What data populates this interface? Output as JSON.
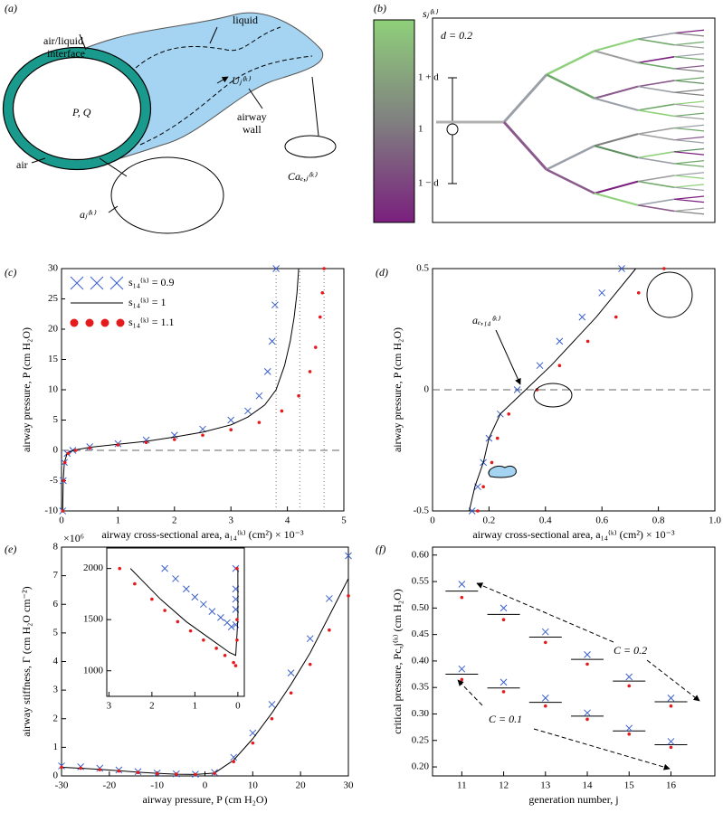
{
  "panel_a": {
    "panel_label": "(a)",
    "interface": [
      "air/liquid",
      "interface"
    ],
    "liquid": "liquid",
    "pressure_flow": "P, Q",
    "velocity": "Uⱼ⁽ᵏ⁾",
    "air": "air",
    "wall": [
      "airway",
      "wall"
    ],
    "capillary": "Caₑ,ⱼ⁽ᵏ⁾",
    "area": "aⱼ⁽ᵏ⁾"
  },
  "panel_b": {
    "panel_label": "(b)",
    "colorbar_label": "sⱼ⁽ᵏ⁾",
    "colorbar_ticks": [
      "1 + d",
      "1",
      "1 − d"
    ],
    "annotation": "d = 0.2"
  },
  "chart_data": [
    {
      "type": "line",
      "panel_label": "(c)",
      "xlabel": "airway cross-sectional area, a₁₄⁽ᵏ⁾ (cm²) × 10⁻³",
      "ylabel": "airway pressure, P (cm H₂O)",
      "xlim": [
        0,
        5
      ],
      "ylim": [
        -10,
        30
      ],
      "xticks": [
        0,
        1,
        2,
        3,
        4,
        5
      ],
      "yticks": [
        -10,
        -5,
        0,
        5,
        10,
        15,
        20,
        25,
        30
      ],
      "hline": 0,
      "vlines": [
        3.8,
        4.22,
        4.65
      ],
      "legend": "upper left",
      "series": [
        {
          "name": "s₁₄⁽ᵏ⁾ = 0.9",
          "color": "#3a5fcd",
          "marker": "x",
          "x": [
            0.02,
            0.03,
            0.05,
            0.1,
            0.2,
            0.5,
            1,
            1.5,
            2,
            2.5,
            3,
            3.3,
            3.5,
            3.65,
            3.73,
            3.78,
            3.8
          ],
          "values": [
            -10,
            -5,
            -2,
            -0.5,
            0,
            0.6,
            1.1,
            1.7,
            2.5,
            3.5,
            5,
            6.5,
            9,
            13,
            18,
            24,
            30
          ]
        },
        {
          "name": "s₁₄⁽ᵏ⁾ = 1",
          "color": "#000000",
          "marker": "line",
          "x": [
            0.02,
            0.03,
            0.05,
            0.1,
            0.2,
            0.5,
            1,
            1.5,
            2,
            2.5,
            3,
            3.3,
            3.6,
            3.8,
            3.95,
            4.05,
            4.12,
            4.17,
            4.2
          ],
          "values": [
            -10,
            -5,
            -2,
            -0.5,
            0,
            0.5,
            1,
            1.5,
            2.2,
            3,
            4.2,
            5.5,
            7.5,
            10,
            14,
            18,
            22,
            26,
            30
          ]
        },
        {
          "name": "s₁₄⁽ᵏ⁾ = 1.1",
          "color": "#e41a1c",
          "marker": "dot",
          "x": [
            0.02,
            0.04,
            0.06,
            0.12,
            0.25,
            0.5,
            1,
            1.5,
            2,
            2.5,
            3,
            3.5,
            3.9,
            4.2,
            4.4,
            4.5,
            4.58,
            4.62,
            4.65
          ],
          "values": [
            -10,
            -5,
            -2,
            -0.5,
            0,
            0.4,
            0.9,
            1.3,
            1.8,
            2.5,
            3.4,
            4.6,
            6.5,
            9,
            13,
            17,
            22,
            26,
            30
          ]
        }
      ]
    },
    {
      "type": "line",
      "panel_label": "(d)",
      "xlabel": "airway cross-sectional area, a₁₄⁽ᵏ⁾ (cm²) × 10⁻³",
      "ylabel": "airway pressure, P (cm H₂O)",
      "xlim": [
        0,
        1
      ],
      "ylim": [
        -0.5,
        0.5
      ],
      "xticks": [
        0,
        0.2,
        0.4,
        0.6,
        0.8,
        {
          "value": 1,
          "label": "1.0"
        }
      ],
      "yticks": [
        -0.5,
        0,
        0.5
      ],
      "hline": 0,
      "annotation": "aₑ,₁₄⁽ᵏ⁾",
      "series": [
        {
          "color": "#3a5fcd",
          "marker": "x",
          "x": [
            0.14,
            0.16,
            0.18,
            0.2,
            0.24,
            0.3,
            0.38,
            0.45,
            0.53,
            0.6,
            0.67
          ],
          "values": [
            -0.5,
            -0.4,
            -0.3,
            -0.2,
            -0.1,
            0,
            0.1,
            0.2,
            0.3,
            0.4,
            0.5
          ]
        },
        {
          "color": "#000000",
          "marker": "line",
          "x": [
            0.13,
            0.15,
            0.18,
            0.2,
            0.24,
            0.33,
            0.42,
            0.5,
            0.58,
            0.65,
            0.72
          ],
          "values": [
            -0.5,
            -0.4,
            -0.3,
            -0.2,
            -0.1,
            0,
            0.1,
            0.2,
            0.3,
            0.4,
            0.5
          ]
        },
        {
          "color": "#e41a1c",
          "marker": "dot",
          "x": [
            0.16,
            0.18,
            0.21,
            0.23,
            0.27,
            0.37,
            0.45,
            0.55,
            0.65,
            0.73,
            0.82
          ],
          "values": [
            -0.5,
            -0.4,
            -0.3,
            -0.2,
            -0.1,
            0,
            0.1,
            0.2,
            0.3,
            0.4,
            0.5
          ]
        }
      ]
    },
    {
      "type": "line",
      "panel_label": "(e)",
      "xlabel": "airway pressure, P (cm H₂O)",
      "ylabel": "airway stiffness, Γ (cm H₂O cm⁻²)",
      "y_multiplier": "×10⁶",
      "xlim": [
        -30,
        30
      ],
      "ylim": [
        0,
        8
      ],
      "xticks": [
        -30,
        -20,
        -10,
        0,
        10,
        20,
        30
      ],
      "yticks": [
        0,
        1,
        2,
        3,
        4,
        5,
        6,
        7,
        8
      ],
      "series": [
        {
          "color": "#3a5fcd",
          "marker": "x",
          "x": [
            -30,
            -26,
            -22,
            -18,
            -14,
            -10,
            -6,
            -2,
            2,
            6,
            10,
            14,
            18,
            22,
            26,
            30
          ],
          "values": [
            0.35,
            0.32,
            0.27,
            0.21,
            0.15,
            0.1,
            0.07,
            0.06,
            0.12,
            0.65,
            1.5,
            2.5,
            3.6,
            4.8,
            6.2,
            7.7
          ]
        },
        {
          "color": "#000000",
          "marker": "line",
          "x": [
            -30,
            -26,
            -22,
            -18,
            -14,
            -10,
            -6,
            -2,
            2,
            6,
            10,
            14,
            18,
            22,
            26,
            30
          ],
          "values": [
            0.3,
            0.27,
            0.23,
            0.18,
            0.13,
            0.09,
            0.06,
            0.05,
            0.1,
            0.55,
            1.3,
            2.2,
            3.2,
            4.3,
            5.6,
            6.9
          ]
        },
        {
          "color": "#e41a1c",
          "marker": "dot",
          "x": [
            -30,
            -26,
            -22,
            -18,
            -14,
            -10,
            -6,
            -2,
            2,
            6,
            10,
            14,
            18,
            22,
            26,
            30
          ],
          "values": [
            0.3,
            0.27,
            0.22,
            0.17,
            0.12,
            0.08,
            0.06,
            0.05,
            0.09,
            0.5,
            1.15,
            2.0,
            2.9,
            3.9,
            5.1,
            6.3
          ]
        }
      ],
      "inset": {
        "xlim": [
          3.05,
          -0.15
        ],
        "ylim": [
          750,
          2200
        ],
        "xticks": [
          3,
          2,
          1,
          0
        ],
        "yticks": [
          1000,
          1500,
          2000
        ],
        "series": [
          {
            "color": "#3a5fcd",
            "marker": "x",
            "x": [
              1.7,
              1.45,
              1.2,
              1.0,
              0.8,
              0.6,
              0.4,
              0.25,
              0.15,
              0.05,
              0.05,
              0.05,
              0.05,
              0.05
            ],
            "values": [
              2000,
              1900,
              1800,
              1720,
              1650,
              1580,
              1520,
              1470,
              1430,
              1450,
              1600,
              1700,
              1800,
              2000
            ]
          },
          {
            "color": "#000000",
            "marker": "line",
            "x": [
              2.5,
              1.8,
              1.2,
              0.6,
              0.2,
              0.05,
              0,
              0
            ],
            "values": [
              2000,
              1700,
              1480,
              1300,
              1180,
              1150,
              1500,
              2000
            ]
          },
          {
            "color": "#e41a1c",
            "marker": "dot",
            "x": [
              2.75,
              2.4,
              2,
              1.7,
              1.4,
              1.1,
              0.8,
              0.5,
              0.3,
              0.1,
              0.05,
              0.02,
              0.02,
              0.02
            ],
            "values": [
              2000,
              1850,
              1700,
              1590,
              1480,
              1390,
              1300,
              1220,
              1150,
              1080,
              1050,
              1300,
              1500,
              2000
            ]
          }
        ]
      }
    },
    {
      "type": "line",
      "panel_label": "(f)",
      "xlabel": "generation number, j",
      "ylabel": "critical pressure, Pc,j⁽ᵏ⁾ (cm H₂O)",
      "xlim": [
        10.3,
        17.05
      ],
      "ylim": [
        0.183,
        0.615
      ],
      "xticks": [
        11,
        12,
        13,
        14,
        15,
        16
      ],
      "yticks": [
        {
          "value": 0.2,
          "label": "0.20"
        },
        0.25,
        {
          "value": 0.3,
          "label": "0.30"
        },
        0.35,
        {
          "value": 0.4,
          "label": "0.40"
        },
        0.45,
        {
          "value": 0.5,
          "label": "0.50"
        },
        0.55,
        {
          "value": 0.6,
          "label": "0.60"
        }
      ],
      "x": [
        11,
        12,
        13,
        14,
        15,
        16
      ],
      "annotations": [
        "C = 0.2",
        "C = 0.1"
      ],
      "series": [
        {
          "color": "#000000",
          "marker": "hbar",
          "values": [
            0.532,
            0.488,
            0.445,
            0.403,
            0.362,
            0.323
          ]
        },
        {
          "color": "#3a5fcd",
          "marker": "x",
          "values": [
            0.545,
            0.5,
            0.455,
            0.412,
            0.37,
            0.33
          ]
        },
        {
          "color": "#e41a1c",
          "marker": "dot",
          "values": [
            0.52,
            0.478,
            0.435,
            0.394,
            0.353,
            0.315
          ]
        },
        {
          "color": "#000000",
          "marker": "hbar",
          "values": [
            0.375,
            0.349,
            0.322,
            0.296,
            0.268,
            0.242
          ]
        },
        {
          "color": "#3a5fcd",
          "marker": "x",
          "values": [
            0.385,
            0.36,
            0.33,
            0.302,
            0.273,
            0.248
          ]
        },
        {
          "color": "#e41a1c",
          "marker": "dot",
          "values": [
            0.365,
            0.342,
            0.315,
            0.29,
            0.262,
            0.237
          ]
        }
      ]
    }
  ]
}
